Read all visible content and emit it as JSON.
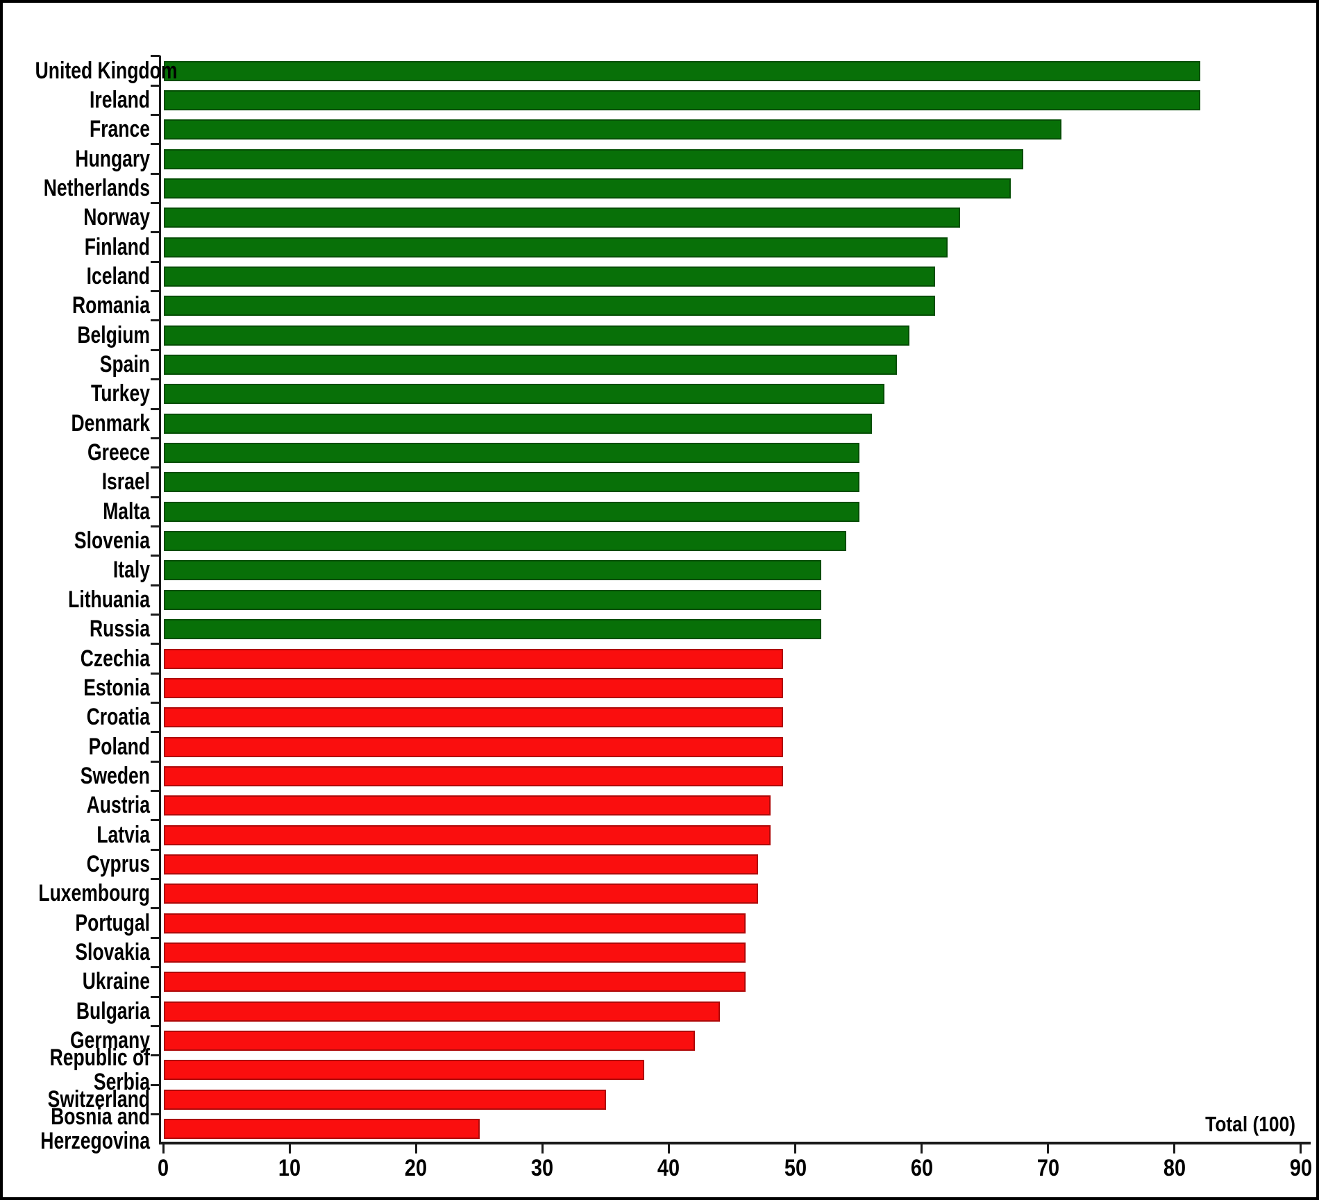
{
  "chart_data": {
    "type": "bar",
    "orientation": "horizontal",
    "title": "",
    "xlabel": "",
    "ylabel": "",
    "annotation": "Total (100)",
    "xlim": [
      0,
      90
    ],
    "x_ticks": [
      "0",
      "10",
      "20",
      "30",
      "40",
      "50",
      "60",
      "70",
      "80",
      "90"
    ],
    "grid": "off",
    "legend": "none",
    "colors": {
      "green_group": "#087008",
      "red_group": "#fa0e0e"
    },
    "categories": [
      {
        "label": "United Kingdom",
        "label_lines": [
          "United Kingdom"
        ],
        "value": 82,
        "group": "green_group"
      },
      {
        "label": "Ireland",
        "label_lines": [
          "Ireland"
        ],
        "value": 82,
        "group": "green_group"
      },
      {
        "label": "France",
        "label_lines": [
          "France"
        ],
        "value": 71,
        "group": "green_group"
      },
      {
        "label": "Hungary",
        "label_lines": [
          "Hungary"
        ],
        "value": 68,
        "group": "green_group"
      },
      {
        "label": "Netherlands",
        "label_lines": [
          "Netherlands"
        ],
        "value": 67,
        "group": "green_group"
      },
      {
        "label": "Norway",
        "label_lines": [
          "Norway"
        ],
        "value": 63,
        "group": "green_group"
      },
      {
        "label": "Finland",
        "label_lines": [
          "Finland"
        ],
        "value": 62,
        "group": "green_group"
      },
      {
        "label": "Iceland",
        "label_lines": [
          "Iceland"
        ],
        "value": 61,
        "group": "green_group"
      },
      {
        "label": "Romania",
        "label_lines": [
          "Romania"
        ],
        "value": 61,
        "group": "green_group"
      },
      {
        "label": "Belgium",
        "label_lines": [
          "Belgium"
        ],
        "value": 59,
        "group": "green_group"
      },
      {
        "label": "Spain",
        "label_lines": [
          "Spain"
        ],
        "value": 58,
        "group": "green_group"
      },
      {
        "label": "Turkey",
        "label_lines": [
          "Turkey"
        ],
        "value": 57,
        "group": "green_group"
      },
      {
        "label": "Denmark",
        "label_lines": [
          "Denmark"
        ],
        "value": 56,
        "group": "green_group"
      },
      {
        "label": "Greece",
        "label_lines": [
          "Greece"
        ],
        "value": 55,
        "group": "green_group"
      },
      {
        "label": "Israel",
        "label_lines": [
          "Israel"
        ],
        "value": 55,
        "group": "green_group"
      },
      {
        "label": "Malta",
        "label_lines": [
          "Malta"
        ],
        "value": 55,
        "group": "green_group"
      },
      {
        "label": "Slovenia",
        "label_lines": [
          "Slovenia"
        ],
        "value": 54,
        "group": "green_group"
      },
      {
        "label": "Italy",
        "label_lines": [
          "Italy"
        ],
        "value": 52,
        "group": "green_group"
      },
      {
        "label": "Lithuania",
        "label_lines": [
          "Lithuania"
        ],
        "value": 52,
        "group": "green_group"
      },
      {
        "label": "Russia",
        "label_lines": [
          "Russia"
        ],
        "value": 52,
        "group": "green_group"
      },
      {
        "label": "Czechia",
        "label_lines": [
          "Czechia"
        ],
        "value": 49,
        "group": "red_group"
      },
      {
        "label": "Estonia",
        "label_lines": [
          "Estonia"
        ],
        "value": 49,
        "group": "red_group"
      },
      {
        "label": "Croatia",
        "label_lines": [
          "Croatia"
        ],
        "value": 49,
        "group": "red_group"
      },
      {
        "label": "Poland",
        "label_lines": [
          "Poland"
        ],
        "value": 49,
        "group": "red_group"
      },
      {
        "label": "Sweden",
        "label_lines": [
          "Sweden"
        ],
        "value": 49,
        "group": "red_group"
      },
      {
        "label": "Austria",
        "label_lines": [
          "Austria"
        ],
        "value": 48,
        "group": "red_group"
      },
      {
        "label": "Latvia",
        "label_lines": [
          "Latvia"
        ],
        "value": 48,
        "group": "red_group"
      },
      {
        "label": "Cyprus",
        "label_lines": [
          "Cyprus"
        ],
        "value": 47,
        "group": "red_group"
      },
      {
        "label": "Luxembourg",
        "label_lines": [
          "Luxembourg"
        ],
        "value": 47,
        "group": "red_group"
      },
      {
        "label": "Portugal",
        "label_lines": [
          "Portugal"
        ],
        "value": 46,
        "group": "red_group"
      },
      {
        "label": "Slovakia",
        "label_lines": [
          "Slovakia"
        ],
        "value": 46,
        "group": "red_group"
      },
      {
        "label": "Ukraine",
        "label_lines": [
          "Ukraine"
        ],
        "value": 46,
        "group": "red_group"
      },
      {
        "label": "Bulgaria",
        "label_lines": [
          "Bulgaria"
        ],
        "value": 44,
        "group": "red_group"
      },
      {
        "label": "Germany",
        "label_lines": [
          "Germany"
        ],
        "value": 42,
        "group": "red_group"
      },
      {
        "label": "Republic of Serbia",
        "label_lines": [
          "Republic of",
          "Serbia"
        ],
        "value": 38,
        "group": "red_group"
      },
      {
        "label": "Switzerland",
        "label_lines": [
          "Switzerland"
        ],
        "value": 35,
        "group": "red_group"
      },
      {
        "label": "Bosnia and Herzegovina",
        "label_lines": [
          "Bosnia and",
          "Herzegovina"
        ],
        "value": 25,
        "group": "red_group"
      }
    ]
  }
}
